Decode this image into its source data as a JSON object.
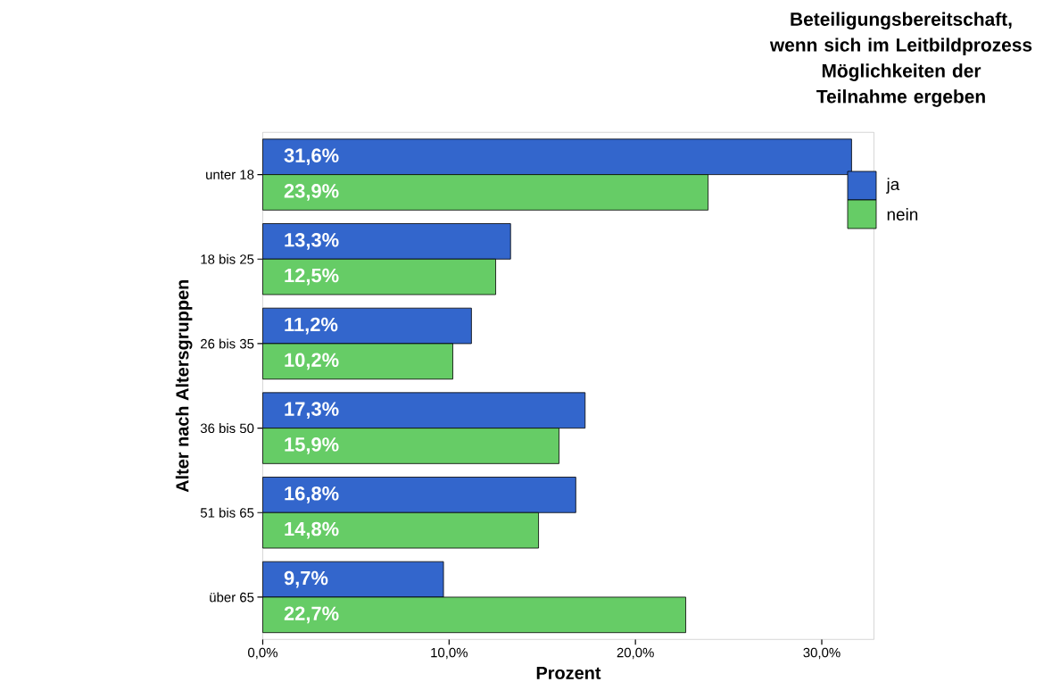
{
  "chart_data": {
    "type": "bar",
    "orientation": "horizontal",
    "xlabel": "Prozent",
    "ylabel": "Alter nach Altersgruppen",
    "legend_title": "Beteiligungsbereitschaft, wenn sich im Leitbildprozess Möglichkeiten der Teilnahme ergeben",
    "legend": "right",
    "categories": [
      "unter 18",
      "18 bis 25",
      "26 bis 35",
      "36 bis 50",
      "51 bis 65",
      "über 65"
    ],
    "xlim": [
      0,
      32.8
    ],
    "xticks": [
      {
        "value": 0,
        "label": "0,0%"
      },
      {
        "value": 10,
        "label": "10,0%"
      },
      {
        "value": 20,
        "label": "20,0%"
      },
      {
        "value": 30,
        "label": "30,0%"
      }
    ],
    "series": [
      {
        "name": "ja",
        "color": "#3366cc",
        "values": [
          31.6,
          13.3,
          11.2,
          17.3,
          16.8,
          9.7
        ],
        "value_labels": [
          "31,6%",
          "13,3%",
          "11,2%",
          "17,3%",
          "16,8%",
          "9,7%"
        ]
      },
      {
        "name": "nein",
        "color": "#66cc66",
        "values": [
          23.9,
          12.5,
          10.2,
          15.9,
          14.8,
          22.7
        ],
        "value_labels": [
          "23,9%",
          "12,5%",
          "10,2%",
          "15,9%",
          "14,8%",
          "22,7%"
        ]
      }
    ]
  }
}
